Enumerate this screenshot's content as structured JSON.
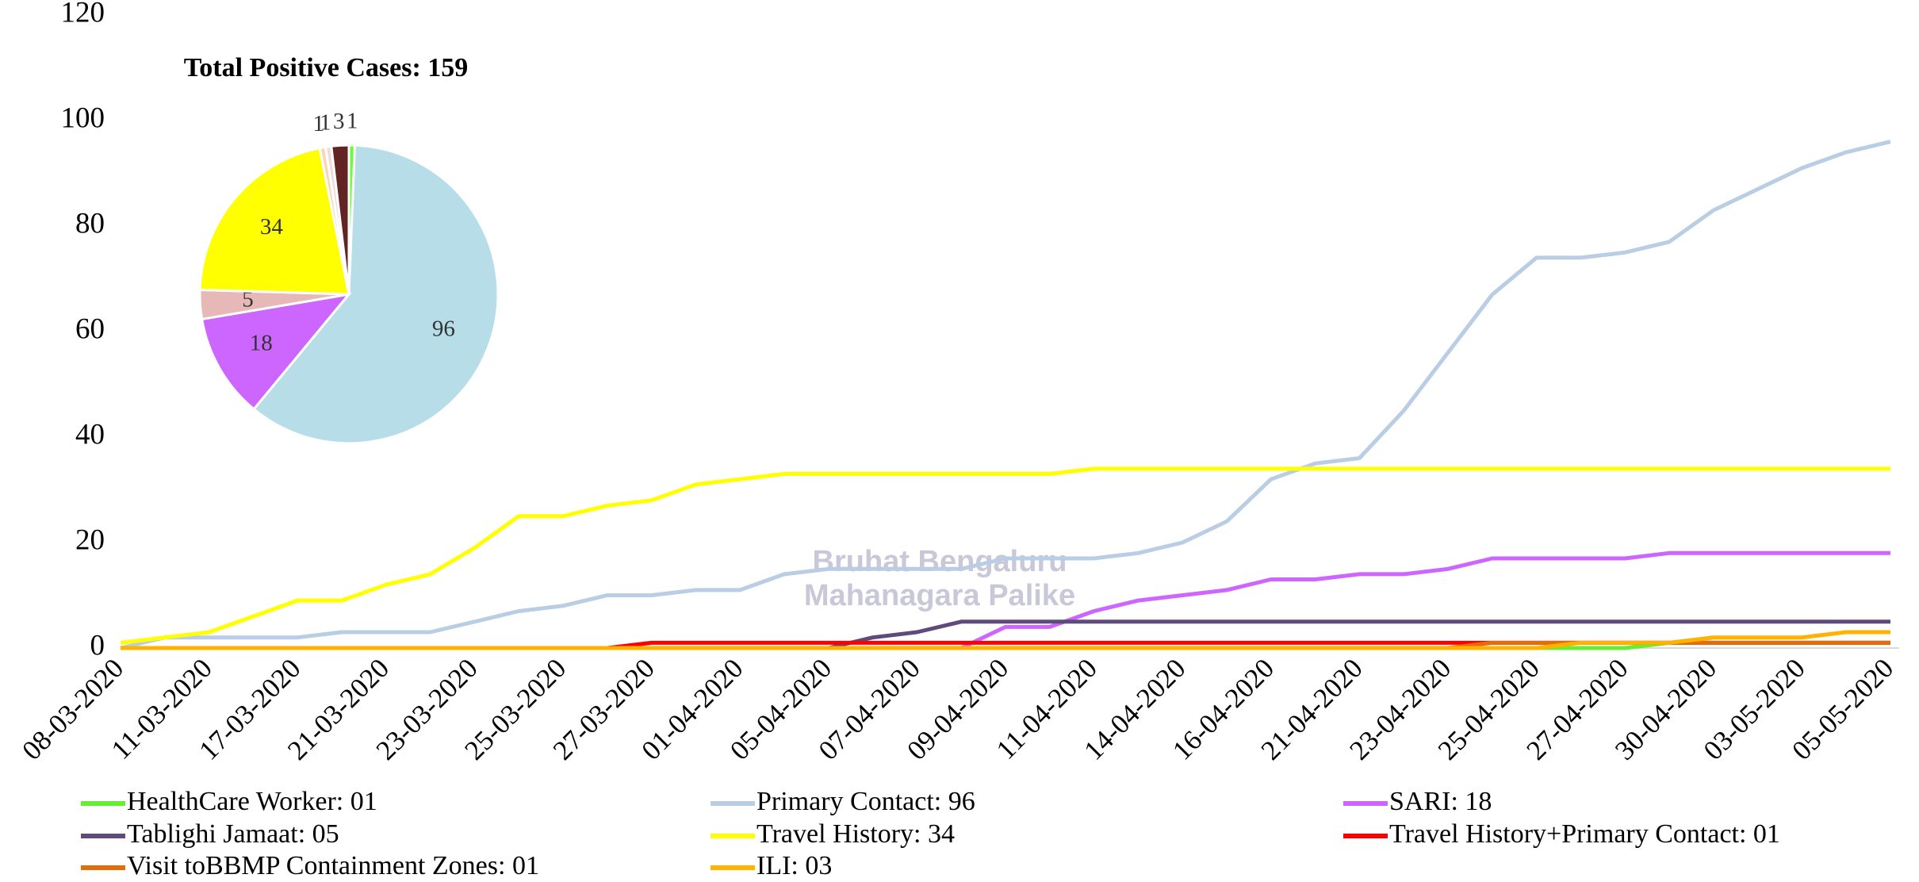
{
  "chart_data": [
    {
      "type": "line",
      "categories": [
        "08-03-2020",
        null,
        "11-03-2020",
        null,
        "17-03-2020",
        null,
        "21-03-2020",
        null,
        "23-03-2020",
        null,
        "25-03-2020",
        null,
        "27-03-2020",
        null,
        "01-04-2020",
        null,
        "05-04-2020",
        null,
        "07-04-2020",
        null,
        "09-04-2020",
        null,
        "11-04-2020",
        null,
        "14-04-2020",
        null,
        "16-04-2020",
        null,
        "21-04-2020",
        null,
        "23-04-2020",
        null,
        "25-04-2020",
        null,
        "27-04-2020",
        null,
        "30-04-2020",
        null,
        "03-05-2020",
        null,
        "05-05-2020"
      ],
      "series": [
        {
          "name": "HealthCare Worker: 01",
          "color": "#66ee33",
          "values": [
            0,
            0,
            0,
            0,
            0,
            0,
            0,
            0,
            0,
            0,
            0,
            0,
            0,
            0,
            0,
            0,
            0,
            0,
            0,
            0,
            0,
            0,
            0,
            0,
            0,
            0,
            0,
            0,
            0,
            0,
            0,
            0,
            0,
            0,
            0,
            1,
            1,
            1,
            1,
            1,
            1
          ]
        },
        {
          "name": "Primary Contact: 96",
          "color": "#b9cde5",
          "values": [
            0,
            2,
            2,
            2,
            2,
            3,
            3,
            3,
            5,
            7,
            8,
            10,
            10,
            11,
            11,
            14,
            15,
            15,
            15,
            15,
            17,
            17,
            17,
            18,
            20,
            24,
            32,
            35,
            36,
            45,
            56,
            67,
            74,
            74,
            75,
            77,
            83,
            87,
            91,
            94,
            96
          ]
        },
        {
          "name": "SARI: 18",
          "color": "#cc66ff",
          "values": [
            0,
            0,
            0,
            0,
            0,
            0,
            0,
            0,
            0,
            0,
            0,
            0,
            0,
            0,
            0,
            0,
            0,
            0,
            0,
            0,
            4,
            4,
            7,
            9,
            10,
            11,
            13,
            13,
            14,
            14,
            15,
            17,
            17,
            17,
            17,
            18,
            18,
            18,
            18,
            18,
            18
          ]
        },
        {
          "name": "Tablighi Jamaat: 05",
          "color": "#604a7b",
          "values": [
            0,
            0,
            0,
            0,
            0,
            0,
            0,
            0,
            0,
            0,
            0,
            0,
            0,
            0,
            0,
            0,
            0,
            2,
            3,
            5,
            5,
            5,
            5,
            5,
            5,
            5,
            5,
            5,
            5,
            5,
            5,
            5,
            5,
            5,
            5,
            5,
            5,
            5,
            5,
            5,
            5
          ]
        },
        {
          "name": "Travel History: 34",
          "color": "#ffff00",
          "values": [
            1,
            2,
            3,
            6,
            9,
            9,
            12,
            14,
            19,
            25,
            25,
            27,
            28,
            31,
            32,
            33,
            33,
            33,
            33,
            33,
            33,
            33,
            34,
            34,
            34,
            34,
            34,
            34,
            34,
            34,
            34,
            34,
            34,
            34,
            34,
            34,
            34,
            34,
            34,
            34,
            34
          ]
        },
        {
          "name": "Travel History+Primary Contact: 01",
          "color": "#ff0000",
          "values": [
            0,
            0,
            0,
            0,
            0,
            0,
            0,
            0,
            0,
            0,
            0,
            0,
            1,
            1,
            1,
            1,
            1,
            1,
            1,
            1,
            1,
            1,
            1,
            1,
            1,
            1,
            1,
            1,
            1,
            1,
            1,
            1,
            1,
            1,
            1,
            1,
            1,
            1,
            1,
            1,
            1
          ]
        },
        {
          "name": "Visit toBBMP Containment Zones: 01",
          "color": "#e46c0a",
          "values": [
            0,
            0,
            0,
            0,
            0,
            0,
            0,
            0,
            0,
            0,
            0,
            0,
            0,
            0,
            0,
            0,
            0,
            0,
            0,
            0,
            0,
            0,
            0,
            0,
            0,
            0,
            0,
            0,
            0,
            0,
            0,
            1,
            1,
            1,
            1,
            1,
            1,
            1,
            1,
            1,
            1
          ]
        },
        {
          "name": "ILI: 03",
          "color": "#ffb300",
          "values": [
            0,
            0,
            0,
            0,
            0,
            0,
            0,
            0,
            0,
            0,
            0,
            0,
            0,
            0,
            0,
            0,
            0,
            0,
            0,
            0,
            0,
            0,
            0,
            0,
            0,
            0,
            0,
            0,
            0,
            0,
            0,
            0,
            0,
            1,
            1,
            1,
            2,
            2,
            2,
            3,
            3
          ]
        }
      ],
      "ylim": [
        0,
        120
      ],
      "yticks": [
        0,
        20,
        40,
        60,
        80,
        100,
        120
      ],
      "grid": false,
      "legend": "bottom",
      "watermark": [
        "Bruhat Bengaluru",
        "Mahanagara Palike"
      ]
    },
    {
      "type": "pie",
      "title": "Total Positive Cases: 159",
      "values": [
        1,
        96,
        18,
        5,
        34,
        1,
        1,
        3
      ],
      "colors": [
        "#66ff33",
        "#b7dee8",
        "#cc66ff",
        "#e6b9b8",
        "#ffff00",
        "#fcd5b5",
        "#f2dcdb",
        "#632523"
      ]
    }
  ]
}
